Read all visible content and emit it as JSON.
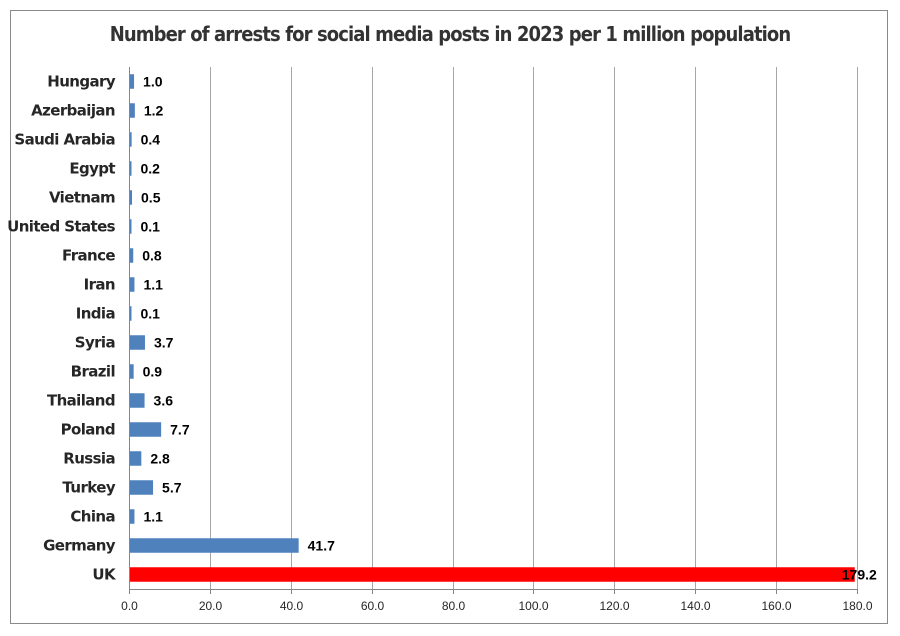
{
  "chart_data": {
    "type": "bar",
    "orientation": "horizontal",
    "title": "Number of arrests for social media posts in 2023 per 1 million population",
    "categories": [
      "Hungary",
      "Azerbaijan",
      "Saudi Arabia",
      "Egypt",
      "Vietnam",
      "United States",
      "France",
      "Iran",
      "India",
      "Syria",
      "Brazil",
      "Thailand",
      "Poland",
      "Russia",
      "Turkey",
      "China",
      "Germany",
      "UK"
    ],
    "values": [
      1.0,
      1.2,
      0.4,
      0.2,
      0.5,
      0.1,
      0.8,
      1.1,
      0.1,
      3.7,
      0.9,
      3.6,
      7.7,
      2.8,
      5.7,
      1.1,
      41.7,
      179.2
    ],
    "value_labels": [
      "1.0",
      "1.2",
      "0.4",
      "0.2",
      "0.5",
      "0.1",
      "0.8",
      "1.1",
      "0.1",
      "3.7",
      "0.9",
      "3.6",
      "7.7",
      "2.8",
      "5.7",
      "1.1",
      "41.7",
      "179.2"
    ],
    "bar_colors": [
      "#4f81bd",
      "#4f81bd",
      "#4f81bd",
      "#4f81bd",
      "#4f81bd",
      "#4f81bd",
      "#4f81bd",
      "#4f81bd",
      "#4f81bd",
      "#4f81bd",
      "#4f81bd",
      "#4f81bd",
      "#4f81bd",
      "#4f81bd",
      "#4f81bd",
      "#4f81bd",
      "#4f81bd",
      "#ff0000"
    ],
    "xlim": [
      0,
      180
    ],
    "xticks": [
      0,
      20,
      40,
      60,
      80,
      100,
      120,
      140,
      160,
      180
    ],
    "xtick_labels": [
      "0.0",
      "20.0",
      "40.0",
      "60.0",
      "80.0",
      "100.0",
      "120.0",
      "140.0",
      "160.0",
      "180.0"
    ],
    "xlabel": "",
    "ylabel": "",
    "grid": "vertical",
    "legend": "none"
  }
}
